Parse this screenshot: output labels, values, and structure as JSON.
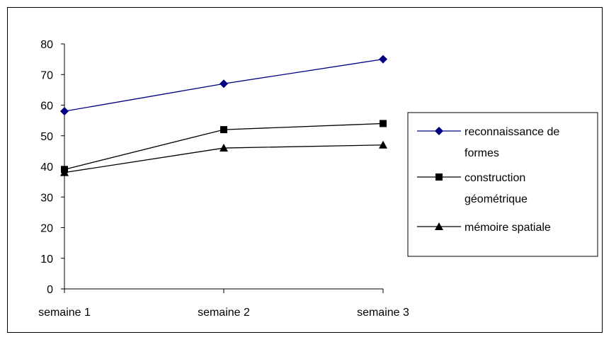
{
  "chart_data": {
    "type": "line",
    "categories": [
      "semaine 1",
      "semaine 2",
      "semaine 3"
    ],
    "y_ticks": [
      "0",
      "10",
      "20",
      "30",
      "40",
      "50",
      "60",
      "70",
      "80"
    ],
    "ylim": [
      0,
      80
    ],
    "grid": false,
    "legend_position": "right",
    "series": [
      {
        "name": "reconnaissance de formes",
        "name_lines": [
          "reconnaissance de",
          "formes"
        ],
        "values": [
          58,
          67,
          75
        ],
        "color": "#000080",
        "marker": "diamond"
      },
      {
        "name": "construction géométrique",
        "name_lines": [
          "construction",
          "géométrique"
        ],
        "values": [
          39,
          52,
          54
        ],
        "color": "#000000",
        "marker": "square"
      },
      {
        "name": "mémoire spatiale",
        "name_lines": [
          "mémoire spatiale"
        ],
        "values": [
          38,
          46,
          47
        ],
        "color": "#000000",
        "marker": "triangle"
      }
    ]
  }
}
